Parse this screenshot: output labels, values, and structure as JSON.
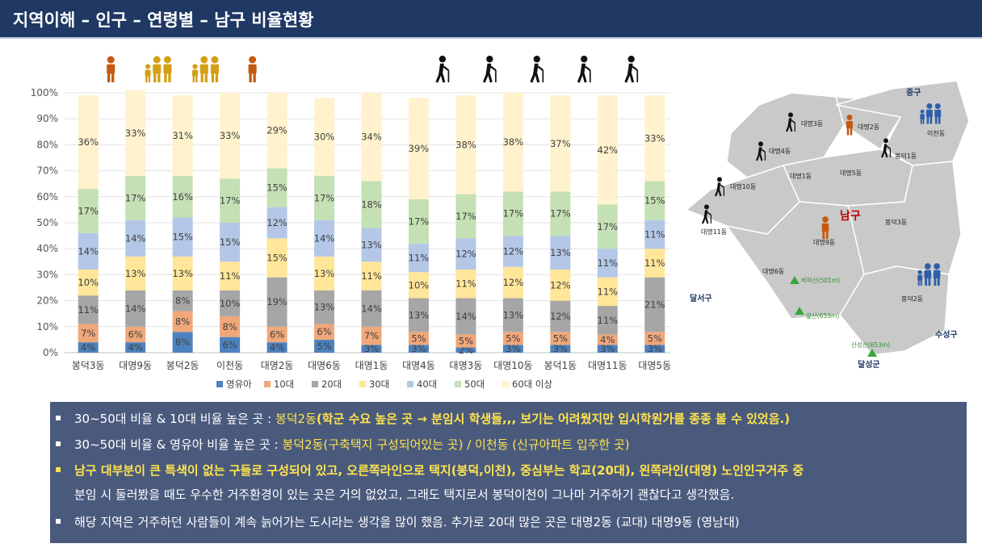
{
  "title": "지역이해 – 인구 – 연령별 – 남구 비율현황",
  "chart_data": {
    "type": "bar",
    "stacked": true,
    "categories": [
      "봉덕3동",
      "대명9동",
      "봉덕2동",
      "이천동",
      "대명2동",
      "대명6동",
      "대명1동",
      "대명4동",
      "대명3동",
      "대명10동",
      "봉덕1동",
      "대명11동",
      "대명5동"
    ],
    "series": [
      {
        "name": "영유아",
        "color": "#4e82bf",
        "values": [
          4,
          4,
          8,
          6,
          4,
          5,
          3,
          3,
          2,
          3,
          3,
          3,
          3
        ]
      },
      {
        "name": "10대",
        "color": "#f0a77a",
        "values": [
          7,
          6,
          8,
          8,
          6,
          6,
          7,
          5,
          5,
          5,
          5,
          4,
          5
        ]
      },
      {
        "name": "20대",
        "color": "#a6a6a6",
        "values": [
          11,
          14,
          8,
          10,
          19,
          13,
          14,
          13,
          14,
          13,
          12,
          11,
          21
        ]
      },
      {
        "name": "30대",
        "color": "#ffe699",
        "values": [
          10,
          13,
          13,
          11,
          15,
          13,
          11,
          10,
          11,
          12,
          12,
          11,
          11
        ]
      },
      {
        "name": "40대",
        "color": "#b4c7e7",
        "values": [
          14,
          14,
          15,
          15,
          12,
          14,
          13,
          11,
          12,
          12,
          13,
          11,
          11
        ]
      },
      {
        "name": "50대",
        "color": "#c5e0b4",
        "values": [
          17,
          17,
          16,
          17,
          15,
          17,
          18,
          17,
          17,
          17,
          17,
          17,
          15
        ]
      },
      {
        "name": "60대 이상",
        "color": "#fff2cc",
        "values": [
          36,
          33,
          31,
          33,
          29,
          30,
          34,
          39,
          38,
          38,
          37,
          42,
          33
        ]
      }
    ],
    "yticks": [
      "0%",
      "10%",
      "20%",
      "30%",
      "40%",
      "50%",
      "60%",
      "70%",
      "80%",
      "90%",
      "100%"
    ],
    "ylim": [
      0,
      100
    ],
    "grid": true,
    "legend": "bottom"
  },
  "icons": [
    {
      "kind": "person-icon",
      "color": "#c55a11",
      "col": 1
    },
    {
      "kind": "family-icon",
      "color": "#d4a017",
      "col": 2
    },
    {
      "kind": "family-icon",
      "color": "#d4a017",
      "col": 3
    },
    {
      "kind": "person-icon",
      "color": "#c55a11",
      "col": 4
    },
    {
      "kind": "elderly-icon",
      "color": "#111111",
      "col": 8
    },
    {
      "kind": "elderly-icon",
      "color": "#111111",
      "col": 9
    },
    {
      "kind": "elderly-icon",
      "color": "#111111",
      "col": 10
    },
    {
      "kind": "elderly-icon",
      "color": "#111111",
      "col": 11
    },
    {
      "kind": "elderly-icon",
      "color": "#111111",
      "col": 12
    }
  ],
  "map": {
    "district_labels": [
      {
        "id": "d3",
        "text": "대명3동"
      },
      {
        "id": "d2",
        "text": "대명2동"
      },
      {
        "id": "d4",
        "text": "대명4동"
      },
      {
        "id": "bd1",
        "text": "봉덕1동"
      },
      {
        "id": "d1",
        "text": "대명1동"
      },
      {
        "id": "d5",
        "text": "대명5동"
      },
      {
        "id": "d10",
        "text": "대명10동"
      },
      {
        "id": "d11",
        "text": "대명11동"
      },
      {
        "id": "bd3",
        "text": "봉덕3동"
      },
      {
        "id": "d9",
        "text": "대명9동"
      },
      {
        "id": "d6",
        "text": "대명6동"
      },
      {
        "id": "bd2",
        "text": "봉덕2동"
      },
      {
        "id": "ic",
        "text": "이천동"
      }
    ],
    "region_labels": {
      "junggu": "중구",
      "namgu": "남구",
      "dalseogu": "달서구",
      "suseonggu": "수성구",
      "dalseonggun": "달성군"
    },
    "mountains": {
      "bipasan": "비파산(501m)",
      "apsan": "앞산(659m)",
      "sanseongsan": "산성산(653m)"
    }
  },
  "notes": [
    {
      "bullet": "▪",
      "parts": [
        {
          "t": "30~50대 비율 & 10대 비율 높은 곳 : ",
          "c": "w"
        },
        {
          "t": "봉덕2동",
          "c": "y"
        },
        {
          "t": "(학군 수요 높은 곳 → 분임시 학생들,,, 보기는 어려웠지만 입시학원가를 종종 볼 수 있었음.)",
          "c": "yb"
        }
      ]
    },
    {
      "bullet": "▪",
      "parts": [
        {
          "t": "30~50대 비율 & 영유아 비율 높은 곳 : ",
          "c": "w"
        },
        {
          "t": "봉덕2동(구축택지 구성되어있는 곳) / 이천동 (신규아파트 입주한 곳)",
          "c": "y"
        }
      ]
    },
    {
      "bullet": "▪",
      "parts": [
        {
          "t": "남구 대부분이 큰 특색이 없는 구들로 구성되어 있고, 오른쪽라인으로 택지(봉덕,이천), 중심부는 학교(20대), 왼쪽라인(대명) 노인인구거주 중",
          "c": "yb"
        }
      ]
    },
    {
      "bullet": "",
      "parts": [
        {
          "t": "분임 시 둘러봤을 때도 우수한 거주환경이 있는 곳은 거의 없었고, 그래도 택지로서 봉덕이천이 그나마 거주하기 괜찮다고 생각했음.",
          "c": "w"
        }
      ]
    },
    {
      "bullet": "▪",
      "parts": [
        {
          "t": "해당 지역은 거주하던 사람들이 계속 늙어가는 도시라는 생각을 많이 했음. 추가로 20대 많은 곳은 대명2동 (교대)  대명9동 (영남대)",
          "c": "w"
        }
      ]
    }
  ]
}
